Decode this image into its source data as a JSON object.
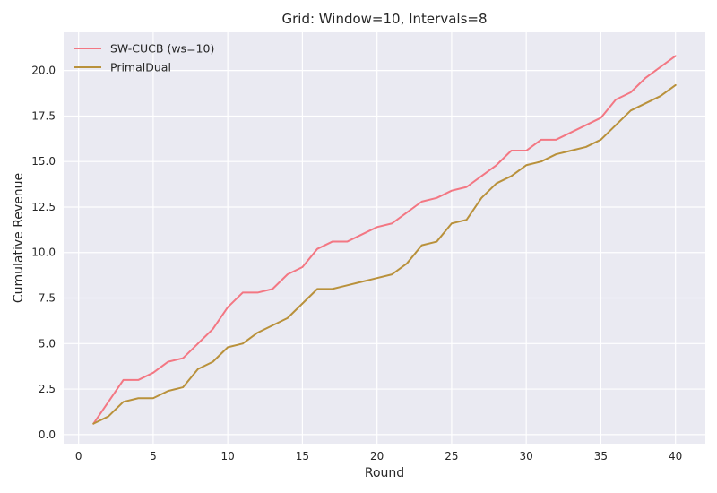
{
  "chart_data": {
    "type": "line",
    "title": "Grid: Window=10, Intervals=8",
    "xlabel": "Round",
    "ylabel": "Cumulative Revenue",
    "xlim": [
      -1,
      42
    ],
    "ylim": [
      -0.5,
      22.1
    ],
    "x_ticks": [
      0,
      5,
      10,
      15,
      20,
      25,
      30,
      35,
      40
    ],
    "y_ticks": [
      0.0,
      2.5,
      5.0,
      7.5,
      10.0,
      12.5,
      15.0,
      17.5,
      20.0
    ],
    "x_tick_labels": [
      "0",
      "5",
      "10",
      "15",
      "20",
      "25",
      "30",
      "35",
      "40"
    ],
    "y_tick_labels": [
      "0.0",
      "2.5",
      "5.0",
      "7.5",
      "10.0",
      "12.5",
      "15.0",
      "17.5",
      "20.0"
    ],
    "grid": true,
    "legend_position": "top-left",
    "background_color": "#eaeaf2",
    "x": [
      1,
      2,
      3,
      4,
      5,
      6,
      7,
      8,
      9,
      10,
      11,
      12,
      13,
      14,
      15,
      16,
      17,
      18,
      19,
      20,
      21,
      22,
      23,
      24,
      25,
      26,
      27,
      28,
      29,
      30,
      31,
      32,
      33,
      34,
      35,
      36,
      37,
      38,
      39,
      40
    ],
    "series": [
      {
        "name": "SW-CUCB (ws=10)",
        "color": "#f37783",
        "values": [
          0.6,
          1.8,
          3.0,
          3.0,
          3.4,
          4.0,
          4.2,
          5.0,
          5.8,
          7.0,
          7.8,
          7.8,
          8.0,
          8.8,
          9.2,
          10.2,
          10.6,
          10.6,
          11.0,
          11.4,
          11.6,
          12.2,
          12.8,
          13.0,
          13.4,
          13.6,
          14.2,
          14.8,
          15.6,
          15.6,
          16.2,
          16.2,
          16.6,
          17.0,
          17.4,
          18.4,
          18.8,
          19.6,
          20.2,
          20.8
        ]
      },
      {
        "name": "PrimalDual",
        "color": "#b9913b",
        "values": [
          0.6,
          1.0,
          1.8,
          2.0,
          2.0,
          2.4,
          2.6,
          3.6,
          4.0,
          4.8,
          5.0,
          5.6,
          6.0,
          6.4,
          7.2,
          8.0,
          8.0,
          8.2,
          8.4,
          8.6,
          8.8,
          9.4,
          10.4,
          10.6,
          11.6,
          11.8,
          13.0,
          13.8,
          14.2,
          14.8,
          15.0,
          15.4,
          15.6,
          15.8,
          16.2,
          17.0,
          17.8,
          18.2,
          18.6,
          19.2
        ]
      }
    ]
  }
}
